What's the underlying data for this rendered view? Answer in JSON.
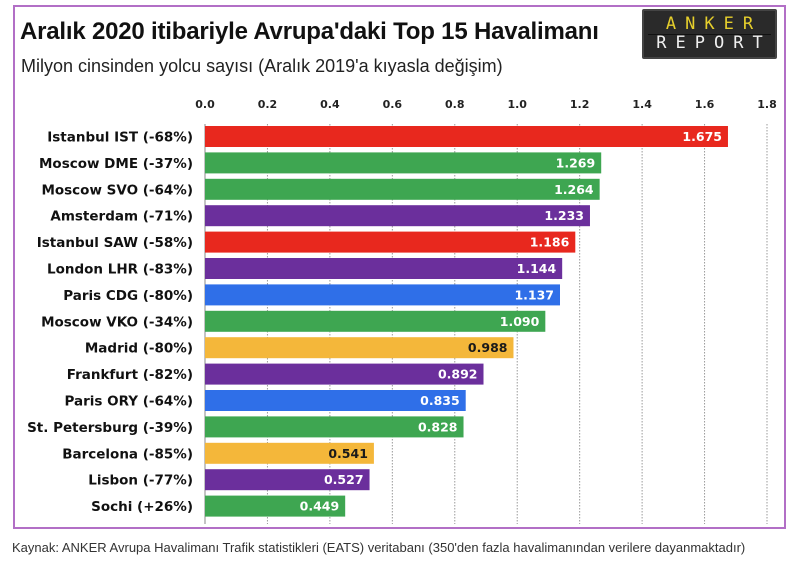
{
  "header": {
    "title": "Aralık 2020 itibariyle Avrupa'daki Top 15 Havalimanı",
    "subtitle": "Milyon cinsinden yolcu sayısı (Aralık 2019'a kıyasla değişim)"
  },
  "logo": {
    "line1": "ANKER",
    "line2": "REPORT",
    "line1_color": "#e6cf2c",
    "line2_color": "#f0f0f0"
  },
  "footer": {
    "source": "Kaynak: ANKER Avrupa Havalimanı Trafik statistikleri (EATS) veritabanı (350'den fazla  havalimanından verilere dayanmaktadır)"
  },
  "colors": {
    "red": "#e8281e",
    "green": "#3ea651",
    "purple": "#6b2f9c",
    "blue": "#2f6fe8",
    "yellow": "#f4b73a",
    "frame": "#b26fc6"
  },
  "chart_data": {
    "type": "bar",
    "orientation": "horizontal",
    "title": "Aralık 2020 itibariyle Avrupa'daki Top 15 Havalimanı",
    "subtitle": "Milyon cinsinden yolcu sayısı (Aralık 2019'a kıyasla değişim)",
    "xlabel": "",
    "ylabel": "",
    "xlim": [
      0,
      1.8
    ],
    "x_ticks": [
      "0.0",
      "0.2",
      "0.4",
      "0.6",
      "0.8",
      "1.0",
      "1.2",
      "1.4",
      "1.6",
      "1.8"
    ],
    "x_axis_position": "top",
    "grid": true,
    "legend": "none",
    "categories": [
      "Istanbul IST (-68%)",
      "Moscow DME (-37%)",
      "Moscow SVO (-64%)",
      "Amsterdam (-71%)",
      "Istanbul SAW (-58%)",
      "London LHR (-83%)",
      "Paris CDG (-80%)",
      "Moscow VKO (-34%)",
      "Madrid (-80%)",
      "Frankfurt (-82%)",
      "Paris ORY (-64%)",
      "St. Petersburg (-39%)",
      "Barcelona (-85%)",
      "Lisbon (-77%)",
      "Sochi (+26%)"
    ],
    "values": [
      1.675,
      1.269,
      1.264,
      1.233,
      1.186,
      1.144,
      1.137,
      1.09,
      0.988,
      0.892,
      0.835,
      0.828,
      0.541,
      0.527,
      0.449
    ],
    "value_labels": [
      "1.675",
      "1.269",
      "1.264",
      "1.233",
      "1.186",
      "1.144",
      "1.137",
      "1.090",
      "0.988",
      "0.892",
      "0.835",
      "0.828",
      "0.541",
      "0.527",
      "0.449"
    ],
    "bar_colors": [
      "red",
      "green",
      "green",
      "purple",
      "red",
      "purple",
      "blue",
      "green",
      "yellow",
      "purple",
      "blue",
      "green",
      "yellow",
      "purple",
      "green"
    ]
  }
}
